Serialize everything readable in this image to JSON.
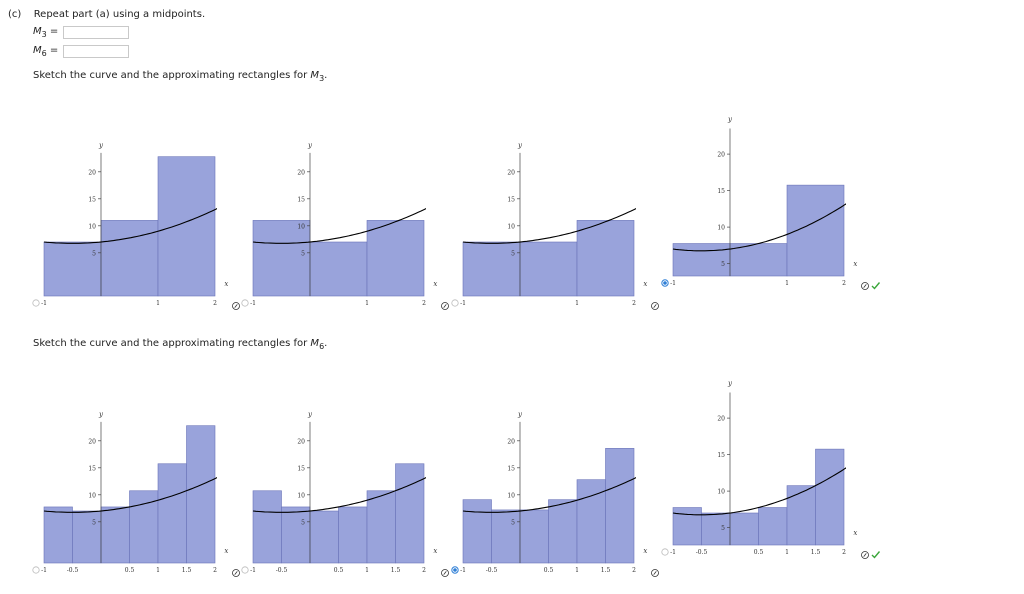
{
  "question": {
    "part_label": "(c)",
    "prompt": "Repeat part (a) using a midpoints.",
    "m3": {
      "var": "M",
      "sub": "3",
      "eq": "=",
      "value": ""
    },
    "m6": {
      "var": "M",
      "sub": "6",
      "eq": "=",
      "value": ""
    }
  },
  "sketch_m3": {
    "text": "Sketch the curve and the approximating rectangles for ",
    "var": "M",
    "sub": "3",
    "end": "."
  },
  "sketch_m6": {
    "text": "Sketch the curve and the approximating rectangles for ",
    "var": "M",
    "sub": "6",
    "end": "."
  },
  "axis_labels": {
    "x": "x",
    "y": "y"
  },
  "colors": {
    "rect_fill": "#99a3db",
    "rect_stroke": "#6a73b8",
    "curve": "#000000",
    "check": "#3aa63a",
    "radio_selected": "#2f7fd6"
  },
  "chart_data": [
    {
      "type": "bar",
      "group": "M3",
      "option": 1,
      "curve": "x^2 + x + 7",
      "xlim": [
        -1,
        2
      ],
      "ylim": [
        0,
        22
      ],
      "xticks": [
        "-1",
        "1",
        "2"
      ],
      "yticks": [
        "5",
        "10",
        "15",
        "20"
      ],
      "rects": [
        {
          "x0": -1,
          "x1": 0,
          "h": 7
        },
        {
          "x0": 0,
          "x1": 1,
          "h": 11
        },
        {
          "x0": 1,
          "x1": 2,
          "h": 23
        }
      ],
      "selected": false,
      "correct": false
    },
    {
      "type": "bar",
      "group": "M3",
      "option": 2,
      "curve": "x^2 + x + 7",
      "xlim": [
        -1,
        2
      ],
      "ylim": [
        0,
        22
      ],
      "xticks": [
        "-1",
        "1",
        "2"
      ],
      "yticks": [
        "5",
        "10",
        "15",
        "20"
      ],
      "rects": [
        {
          "x0": -1,
          "x1": 0,
          "h": 11
        },
        {
          "x0": 0,
          "x1": 1,
          "h": 7
        },
        {
          "x0": 1,
          "x1": 2,
          "h": 11
        }
      ],
      "selected": false,
      "correct": false
    },
    {
      "type": "bar",
      "group": "M3",
      "option": 3,
      "curve": "x^2 + x + 7",
      "xlim": [
        -1,
        2
      ],
      "ylim": [
        0,
        22
      ],
      "xticks": [
        "-1",
        "1",
        "2"
      ],
      "yticks": [
        "5",
        "10",
        "15",
        "20"
      ],
      "rects": [
        {
          "x0": -1,
          "x1": 0,
          "h": 7
        },
        {
          "x0": 0,
          "x1": 1,
          "h": 7
        },
        {
          "x0": 1,
          "x1": 2,
          "h": 11
        }
      ],
      "selected": false,
      "correct": false
    },
    {
      "type": "bar",
      "group": "M3",
      "option": 4,
      "curve": "x^2 + x + 7",
      "xlim": [
        -1,
        2
      ],
      "ylim": [
        0,
        22
      ],
      "xticks": [
        "-1",
        "1",
        "2"
      ],
      "yticks": [
        "5",
        "10",
        "15",
        "20"
      ],
      "rects": [
        {
          "x0": -1,
          "x1": 0,
          "h": 7.75
        },
        {
          "x0": 0,
          "x1": 1,
          "h": 7.75
        },
        {
          "x0": 1,
          "x1": 2,
          "h": 15.75
        }
      ],
      "selected": true,
      "correct": true
    },
    {
      "type": "bar",
      "group": "M6",
      "option": 1,
      "curve": "x^2 + x + 7",
      "xlim": [
        -1,
        2
      ],
      "ylim": [
        0,
        22
      ],
      "xticks": [
        "-1",
        "-0.5",
        "0.5",
        "1",
        "1.5",
        "2"
      ],
      "yticks": [
        "5",
        "10",
        "15",
        "20"
      ],
      "rects": [
        {
          "x0": -1,
          "x1": -0.5,
          "h": 7.75
        },
        {
          "x0": -0.5,
          "x1": 0,
          "h": 7
        },
        {
          "x0": 0,
          "x1": 0.5,
          "h": 7.75
        },
        {
          "x0": 0.5,
          "x1": 1,
          "h": 10.75
        },
        {
          "x0": 1,
          "x1": 1.5,
          "h": 15.75
        },
        {
          "x0": 1.5,
          "x1": 2,
          "h": 23
        }
      ],
      "selected": false,
      "correct": false
    },
    {
      "type": "bar",
      "group": "M6",
      "option": 2,
      "curve": "x^2 + x + 7",
      "xlim": [
        -1,
        2
      ],
      "ylim": [
        0,
        22
      ],
      "xticks": [
        "-1",
        "-0.5",
        "0.5",
        "1",
        "1.5",
        "2"
      ],
      "yticks": [
        "5",
        "10",
        "15",
        "20"
      ],
      "rects": [
        {
          "x0": -1,
          "x1": -0.5,
          "h": 10.75
        },
        {
          "x0": -0.5,
          "x1": 0,
          "h": 7.75
        },
        {
          "x0": 0,
          "x1": 0.5,
          "h": 7
        },
        {
          "x0": 0.5,
          "x1": 1,
          "h": 7.75
        },
        {
          "x0": 1,
          "x1": 1.5,
          "h": 10.75
        },
        {
          "x0": 1.5,
          "x1": 2,
          "h": 15.75
        }
      ],
      "selected": false,
      "correct": false
    },
    {
      "type": "bar",
      "group": "M6",
      "option": 3,
      "curve": "x^2 + x + 7",
      "xlim": [
        -1,
        2
      ],
      "ylim": [
        0,
        22
      ],
      "xticks": [
        "-1",
        "-0.5",
        "0.5",
        "1",
        "1.5",
        "2"
      ],
      "yticks": [
        "5",
        "10",
        "15",
        "20"
      ],
      "rects": [
        {
          "x0": -1,
          "x1": -0.5,
          "h": 9.1
        },
        {
          "x0": -0.5,
          "x1": 0,
          "h": 7.2
        },
        {
          "x0": 0,
          "x1": 0.5,
          "h": 7.2
        },
        {
          "x0": 0.5,
          "x1": 1,
          "h": 9.1
        },
        {
          "x0": 1,
          "x1": 1.5,
          "h": 12.8
        },
        {
          "x0": 1.5,
          "x1": 2,
          "h": 18.6
        }
      ],
      "selected": true,
      "correct": false
    },
    {
      "type": "bar",
      "group": "M6",
      "option": 4,
      "curve": "x^2 + x + 7",
      "xlim": [
        -1,
        2
      ],
      "ylim": [
        0,
        22
      ],
      "xticks": [
        "-1",
        "-0.5",
        "0.5",
        "1",
        "1.5",
        "2"
      ],
      "yticks": [
        "5",
        "10",
        "15",
        "20"
      ],
      "rects": [
        {
          "x0": -1,
          "x1": -0.5,
          "h": 7.75
        },
        {
          "x0": -0.5,
          "x1": 0,
          "h": 7
        },
        {
          "x0": 0,
          "x1": 0.5,
          "h": 7
        },
        {
          "x0": 0.5,
          "x1": 1,
          "h": 7.75
        },
        {
          "x0": 1,
          "x1": 1.5,
          "h": 10.75
        },
        {
          "x0": 1.5,
          "x1": 2,
          "h": 15.75
        }
      ],
      "selected": false,
      "correct": true
    }
  ]
}
